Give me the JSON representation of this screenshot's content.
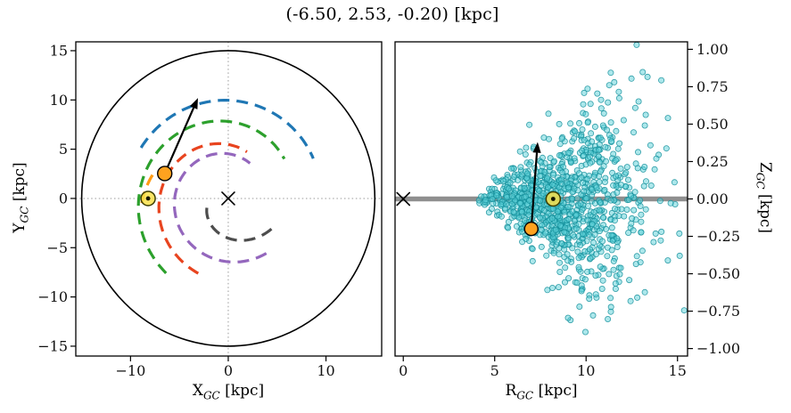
{
  "title": "(-6.50, 2.53, -0.20) [kpc]",
  "chart_data": {
    "type": "scatter",
    "description": "Galactocentric location of a star: face-on X-Y view of the Galaxy with dashed spiral arms (left) and R-Z side view with Monte Carlo sample cloud (right)",
    "panels": [
      {
        "id": "xy",
        "xlabel": {
          "prefix": "X",
          "sub": "GC",
          "suffix": " [kpc]"
        },
        "ylabel": {
          "prefix": "Y",
          "sub": "GC",
          "suffix": " [kpc]"
        },
        "x_range": [
          -15.6,
          15.7
        ],
        "y_range": [
          -16.0,
          15.9
        ],
        "x_ticks": [
          {
            "v": -10,
            "label": "−10"
          },
          {
            "v": 0,
            "label": "0"
          },
          {
            "v": 10,
            "label": "10"
          }
        ],
        "y_ticks": [
          {
            "v": 15,
            "label": "15"
          },
          {
            "v": 10,
            "label": "10"
          },
          {
            "v": 5,
            "label": "5"
          },
          {
            "v": 0,
            "label": "0"
          },
          {
            "v": -5,
            "label": "−5"
          },
          {
            "v": -10,
            "label": "−10"
          },
          {
            "v": -15,
            "label": "−15"
          }
        ],
        "outer_circle_radius": 15,
        "grid": "dotted-crosshair-at-0",
        "galactic_center_marker": {
          "x": 0,
          "y": 0,
          "shape": "x"
        },
        "sun_marker": {
          "x": -8.2,
          "y": 0.0
        },
        "star_marker": {
          "x": -6.5,
          "y": 2.53
        },
        "velocity_arrow": {
          "from": [
            -6.5,
            2.53
          ],
          "to": [
            -3.1,
            10.2
          ]
        },
        "spiral_arms": [
          {
            "name": "outer-blue-arm",
            "color": "#1f77b4",
            "theta_deg": [
              150,
              25
            ],
            "r_kpc": [
              10.3,
              9.6
            ]
          },
          {
            "name": "green-arm",
            "color": "#2ca02c",
            "theta_deg": [
              230,
              35
            ],
            "r_kpc": [
              9.9,
              7.0
            ]
          },
          {
            "name": "red-arm",
            "color": "#e8441f",
            "theta_deg": [
              248,
              68
            ],
            "r_kpc": [
              8.2,
              5.1
            ]
          },
          {
            "name": "purple-arm",
            "color": "#9467bd",
            "theta_deg": [
              305,
              58
            ],
            "r_kpc": [
              6.8,
              4.2
            ]
          },
          {
            "name": "gray-inner-arm",
            "color": "#4d4d4d",
            "theta_deg": [
              325,
              196
            ],
            "r_kpc": [
              5.4,
              2.2
            ]
          },
          {
            "name": "local-orange-arm",
            "color": "#ff9b13",
            "theta_deg": [
              183,
              160
            ],
            "r_kpc": [
              8.85,
              8.0
            ]
          }
        ]
      },
      {
        "id": "rz",
        "xlabel": {
          "prefix": "R",
          "sub": "GC",
          "suffix": " [kpc]"
        },
        "ylabel": {
          "prefix": "Z",
          "sub": "GC",
          "suffix": " [kpc]"
        },
        "x_range": [
          -0.45,
          15.55
        ],
        "y_range": [
          -1.05,
          1.05
        ],
        "x_ticks": [
          {
            "v": 0,
            "label": "0"
          },
          {
            "v": 5,
            "label": "5"
          },
          {
            "v": 10,
            "label": "10"
          },
          {
            "v": 15,
            "label": "15"
          }
        ],
        "y_ticks": [
          {
            "v": 1.0,
            "label": "1.00"
          },
          {
            "v": 0.75,
            "label": "0.75"
          },
          {
            "v": 0.5,
            "label": "0.50"
          },
          {
            "v": 0.25,
            "label": "0.25"
          },
          {
            "v": 0.0,
            "label": "0.00"
          },
          {
            "v": -0.25,
            "label": "−0.25"
          },
          {
            "v": -0.5,
            "label": "−0.50"
          },
          {
            "v": -0.75,
            "label": "−0.75"
          },
          {
            "v": -1.0,
            "label": "−1.00"
          }
        ],
        "midplane_line": {
          "z": 0,
          "color": "#8f8f8f"
        },
        "galactic_center_marker": {
          "r": 0,
          "z": 0,
          "shape": "x"
        },
        "sun_marker": {
          "r": 8.2,
          "z": 0.0
        },
        "star_marker": {
          "r": 7.0,
          "z": -0.2
        },
        "velocity_arrow": {
          "from": [
            7.0,
            -0.2
          ],
          "to": [
            7.35,
            0.38
          ]
        },
        "sample_cloud": {
          "count": 1000,
          "seed": 7,
          "r_mean": 8.8,
          "r_sigma": 2.2,
          "r_min": 4.1,
          "r_max": 15.4,
          "z_sigma_base": 0.02,
          "z_sigma_slope": 0.047,
          "fill": "#5ad0d8",
          "edge": "#148f9b",
          "opacity": 0.5
        }
      }
    ],
    "style": {
      "sun_fill": "#f9e04b",
      "sun_ring": "#3c3c00",
      "star_fill": "#ffa21f",
      "arm_dash": "13 8",
      "frame_color": "#000000"
    }
  }
}
